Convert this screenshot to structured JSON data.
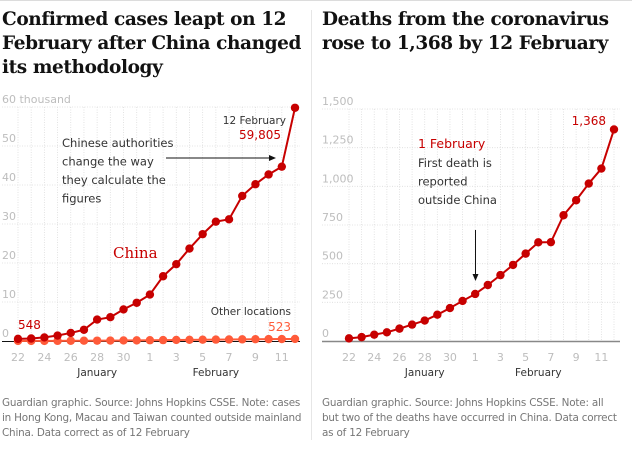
{
  "colors": {
    "china": "#c70000",
    "other": "#ff5b3a",
    "deaths": "#c70000",
    "grid": "#dcdcdc",
    "axis": "#888888",
    "annotation": "#333333"
  },
  "left": {
    "title": "Confirmed cases leapt on 12 February after China changed its methodology",
    "note": "Guardian graphic. Source: Johns Hopkins CSSE. Note: cases in Hong Kong, Macau and Taiwan counted outside mainland China. Data correct as of 12 February",
    "annotation_lines": [
      "Chinese authorities",
      "change the way",
      "they calculate the",
      "figures"
    ],
    "end_date_label": "12 February",
    "end_value_label": "59,805",
    "start_value_label": "548",
    "china_label": "China",
    "other_label": "Other locations",
    "other_end_label": "523"
  },
  "right": {
    "title": "Deaths from the coronavirus rose to 1,368 by 12 February",
    "note": "Guardian graphic. Source: Johns Hopkins CSSE. Note: all but two of the deaths have occurred in China. Data correct as of 12 February",
    "annotation_date": "1 February",
    "annotation_lines": [
      "First death is",
      "reported",
      "outside China"
    ],
    "end_value_label": "1,368"
  },
  "chart_data": [
    {
      "type": "line",
      "title": "Confirmed cases leapt on 12 February after China changed its methodology",
      "ylabel": "thousand",
      "ylim": [
        0,
        60
      ],
      "yticks": [
        0,
        10,
        20,
        30,
        40,
        50,
        60
      ],
      "ytick_labels": [
        "0",
        "10",
        "20",
        "30",
        "40",
        "50",
        "60 thousand"
      ],
      "x": [
        "22 Jan",
        "23 Jan",
        "24 Jan",
        "25 Jan",
        "26 Jan",
        "27 Jan",
        "28 Jan",
        "29 Jan",
        "30 Jan",
        "31 Jan",
        "1 Feb",
        "2 Feb",
        "3 Feb",
        "4 Feb",
        "5 Feb",
        "6 Feb",
        "7 Feb",
        "8 Feb",
        "9 Feb",
        "10 Feb",
        "11 Feb",
        "12 Feb"
      ],
      "xtick_labels": [
        "22",
        "24",
        "26",
        "28",
        "30",
        "1",
        "3",
        "5",
        "7",
        "9",
        "11"
      ],
      "xtick_index": [
        0,
        2,
        4,
        6,
        8,
        10,
        12,
        14,
        16,
        18,
        20
      ],
      "month_labels": [
        {
          "label": "January",
          "at_index": 6
        },
        {
          "label": "February",
          "at_index": 15
        }
      ],
      "grid": true,
      "series": [
        {
          "name": "China",
          "values": [
            0.548,
            0.64,
            0.92,
            1.4,
            2.07,
            2.88,
            5.5,
            6.1,
            8.1,
            9.8,
            11.9,
            16.6,
            19.7,
            23.7,
            27.4,
            30.6,
            31.2,
            37.2,
            40.2,
            42.7,
            44.7,
            59.8
          ]
        },
        {
          "name": "Other locations",
          "values": [
            0.01,
            0.02,
            0.03,
            0.04,
            0.06,
            0.08,
            0.09,
            0.11,
            0.14,
            0.16,
            0.2,
            0.23,
            0.27,
            0.3,
            0.33,
            0.36,
            0.39,
            0.42,
            0.46,
            0.48,
            0.5,
            0.523
          ]
        }
      ]
    },
    {
      "type": "line",
      "title": "Deaths from the coronavirus rose to 1,368 by 12 February",
      "ylim": [
        0,
        1500
      ],
      "yticks": [
        0,
        250,
        500,
        750,
        1000,
        1250,
        1500
      ],
      "ytick_labels": [
        "0",
        "250",
        "500",
        "750",
        "1,000",
        "1,250",
        "1,500"
      ],
      "x": [
        "22 Jan",
        "23 Jan",
        "24 Jan",
        "25 Jan",
        "26 Jan",
        "27 Jan",
        "28 Jan",
        "29 Jan",
        "30 Jan",
        "31 Jan",
        "1 Feb",
        "2 Feb",
        "3 Feb",
        "4 Feb",
        "5 Feb",
        "6 Feb",
        "7 Feb",
        "8 Feb",
        "9 Feb",
        "10 Feb",
        "11 Feb",
        "12 Feb"
      ],
      "xtick_labels": [
        "22",
        "24",
        "26",
        "28",
        "30",
        "1",
        "3",
        "5",
        "7",
        "9",
        "11"
      ],
      "xtick_index": [
        0,
        2,
        4,
        6,
        8,
        10,
        12,
        14,
        16,
        18,
        20
      ],
      "month_labels": [
        {
          "label": "January",
          "at_index": 6
        },
        {
          "label": "February",
          "at_index": 15
        }
      ],
      "grid": true,
      "series": [
        {
          "name": "Deaths",
          "values": [
            17,
            25,
            41,
            56,
            80,
            106,
            132,
            170,
            213,
            259,
            304,
            362,
            426,
            492,
            565,
            638,
            639,
            813,
            910,
            1018,
            1115,
            1368
          ]
        }
      ]
    }
  ]
}
